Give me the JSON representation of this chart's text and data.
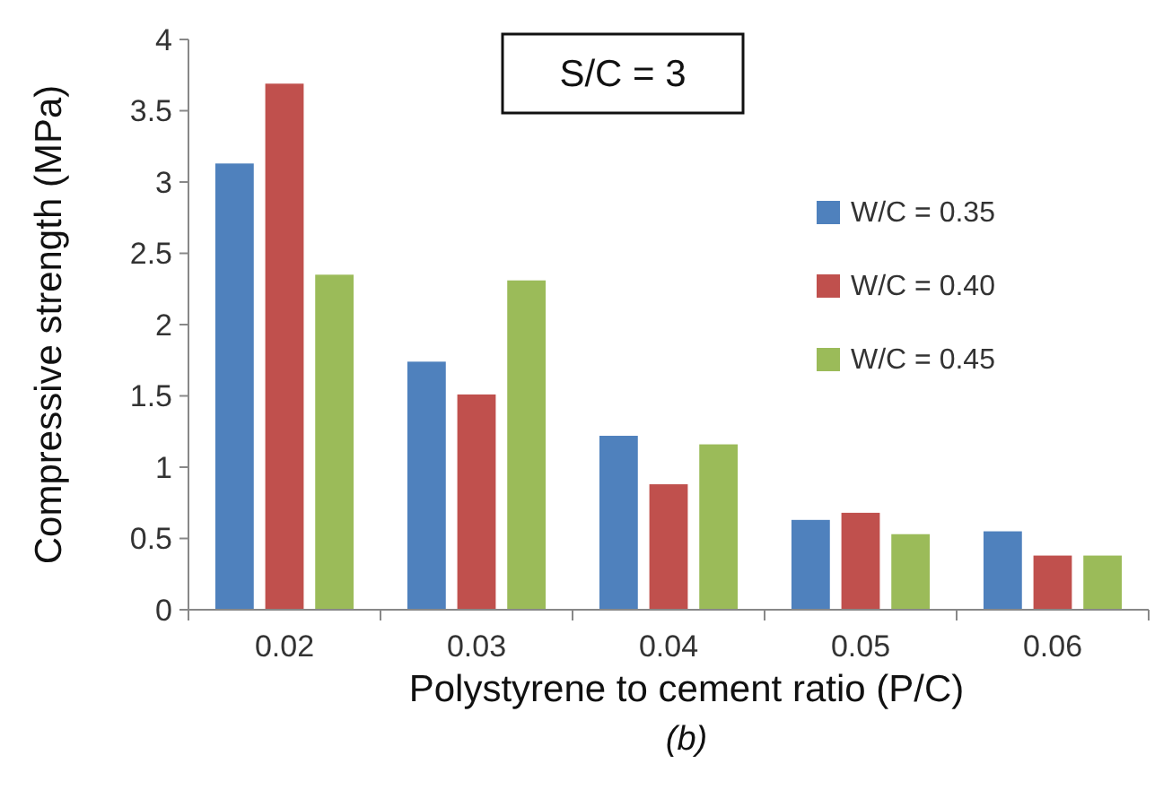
{
  "chart_data": {
    "type": "bar",
    "title": "S/C = 3",
    "xlabel": "Polystyrene to cement ratio (P/C)",
    "ylabel": "Compressive strength (MPa)",
    "annotations": [
      "(b)"
    ],
    "categories": [
      "0.02",
      "0.03",
      "0.04",
      "0.05",
      "0.06"
    ],
    "series": [
      {
        "name": "W/C = 0.35",
        "color": "#4f81bd",
        "values": [
          3.13,
          1.74,
          1.22,
          0.63,
          0.55
        ]
      },
      {
        "name": "W/C = 0.40",
        "color": "#c0504d",
        "values": [
          3.69,
          1.51,
          0.88,
          0.68,
          0.38
        ]
      },
      {
        "name": "W/C = 0.45",
        "color": "#9bbb59",
        "values": [
          2.35,
          2.31,
          1.16,
          0.53,
          0.38
        ]
      }
    ],
    "ylim": [
      0,
      4
    ],
    "yticks": [
      0,
      0.5,
      1,
      1.5,
      2,
      2.5,
      3,
      3.5,
      4
    ],
    "legend": "right",
    "grid": false
  }
}
